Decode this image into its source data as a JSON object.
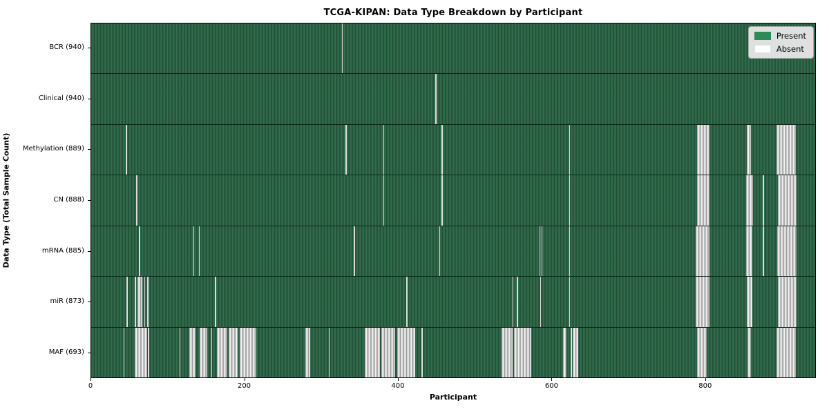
{
  "title": "TCGA-KIPAN: Data Type Breakdown by Participant",
  "xlabel": "Participant",
  "ylabel": "Data Type (Total Sample Count)",
  "colors": {
    "present": "#2e8b57",
    "absent": "#ffffff",
    "legend_bg": "#e8e8e8",
    "row_separator": "#10231a"
  },
  "legend": {
    "entries": [
      {
        "label": "Present",
        "color": "#2e8b57"
      },
      {
        "label": "Absent",
        "color": "#ffffff"
      }
    ]
  },
  "chart_data": {
    "type": "heatmap",
    "x_max": 944,
    "x_ticks": [
      0,
      200,
      400,
      600,
      800
    ],
    "legend_position": "upper right",
    "rows": [
      {
        "label": "BCR (940)",
        "data_type": "BCR",
        "total_sample_count": 940,
        "absent_ranges": [
          [
            326,
            327
          ]
        ]
      },
      {
        "label": "Clinical (940)",
        "data_type": "Clinical",
        "total_sample_count": 940,
        "absent_ranges": [
          [
            448,
            449
          ]
        ]
      },
      {
        "label": "Methylation (889)",
        "data_type": "Methylation",
        "total_sample_count": 889,
        "absent_ranges": [
          [
            45,
            46
          ],
          [
            331,
            332
          ],
          [
            380,
            381
          ],
          [
            456,
            457
          ],
          [
            622,
            623
          ],
          [
            788,
            805
          ],
          [
            853,
            859
          ],
          [
            892,
            917
          ]
        ]
      },
      {
        "label": "CN (888)",
        "data_type": "CN",
        "total_sample_count": 888,
        "absent_ranges": [
          [
            58,
            60
          ],
          [
            380,
            381
          ],
          [
            456,
            457
          ],
          [
            622,
            623
          ],
          [
            788,
            805
          ],
          [
            852,
            861
          ],
          [
            874,
            875
          ],
          [
            894,
            918
          ]
        ]
      },
      {
        "label": "mRNA (885)",
        "data_type": "mRNA",
        "total_sample_count": 885,
        "absent_ranges": [
          [
            62,
            63
          ],
          [
            133,
            134
          ],
          [
            140,
            141
          ],
          [
            342,
            343
          ],
          [
            453,
            454
          ],
          [
            583,
            584
          ],
          [
            586,
            587
          ],
          [
            622,
            623
          ],
          [
            787,
            805
          ],
          [
            852,
            860
          ],
          [
            874,
            875
          ],
          [
            893,
            918
          ]
        ]
      },
      {
        "label": "miR (873)",
        "data_type": "miR",
        "total_sample_count": 873,
        "absent_ranges": [
          [
            46,
            47
          ],
          [
            57,
            58
          ],
          [
            60,
            67
          ],
          [
            69,
            70
          ],
          [
            73,
            74
          ],
          [
            161,
            162
          ],
          [
            410,
            411
          ],
          [
            548,
            549
          ],
          [
            554,
            555
          ],
          [
            584,
            585
          ],
          [
            622,
            623
          ],
          [
            787,
            805
          ],
          [
            853,
            860
          ],
          [
            894,
            918
          ]
        ]
      },
      {
        "label": "MAF (693)",
        "data_type": "MAF",
        "total_sample_count": 693,
        "absent_ranges": [
          [
            42,
            43
          ],
          [
            57,
            73
          ],
          [
            74,
            75
          ],
          [
            115,
            116
          ],
          [
            128,
            136
          ],
          [
            141,
            151
          ],
          [
            156,
            157
          ],
          [
            164,
            177
          ],
          [
            179,
            191
          ],
          [
            193,
            215
          ],
          [
            279,
            285
          ],
          [
            309,
            310
          ],
          [
            356,
            376
          ],
          [
            378,
            396
          ],
          [
            398,
            422
          ],
          [
            430,
            431
          ],
          [
            534,
            548
          ],
          [
            550,
            573
          ],
          [
            614,
            619
          ],
          [
            624,
            625
          ],
          [
            627,
            634
          ],
          [
            788,
            801
          ],
          [
            854,
            859
          ],
          [
            892,
            917
          ]
        ]
      }
    ]
  }
}
